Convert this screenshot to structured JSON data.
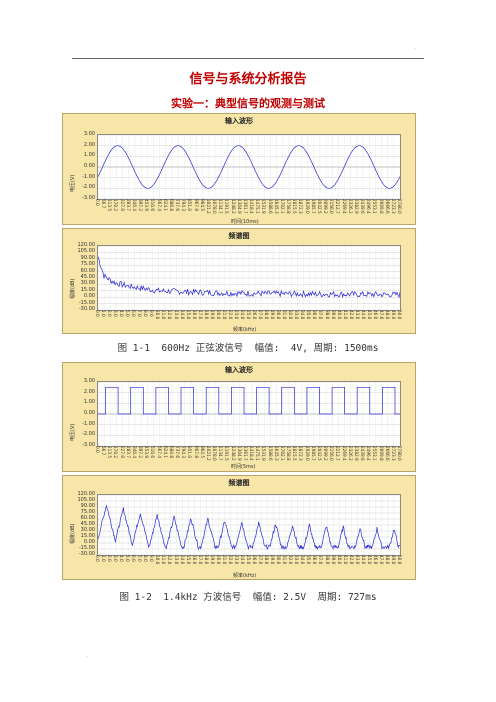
{
  "header_mark": ".",
  "footer_mark": ".",
  "report_title": "信号与系统分析报告",
  "experiment_title": "实验一：典型信号的观测与测试",
  "figures": [
    {
      "panels": [
        {
          "title": "输入波形",
          "ylabel": "电压(V)",
          "xlabel": "时间(10ms)",
          "yticks": [
            "3.00",
            "2.00",
            "1.00",
            "0.00",
            "-1.00",
            "-2.00",
            "-3.00"
          ],
          "xticks": [
            "0.0",
            "56.7",
            "113.5",
            "170.2",
            "227.0",
            "283.7",
            "340.4",
            "397.2",
            "453.9",
            "510.6",
            "567.4",
            "624.1",
            "680.8",
            "737.6",
            "794.3",
            "851.0",
            "907.8",
            "964.5",
            "1021.2",
            "1078.0",
            "1134.7",
            "1191.5",
            "1248.2",
            "1304.9",
            "1361.7",
            "1418.4",
            "1475.1",
            "1531.9",
            "1588.6",
            "1645.3",
            "1702.1",
            "1758.8",
            "1815.5",
            "1872.3",
            "1929.0",
            "1985.7",
            "2042.5",
            "2099.2",
            "2156.0",
            "2212.7",
            "2269.4",
            "2326.2",
            "2382.9",
            "2439.6",
            "2496.4",
            "2553.1",
            "2609.8",
            "2666.6",
            "2723.3",
            "2780.0"
          ]
        },
        {
          "title": "频谱图",
          "ylabel": "幅度(dB)",
          "xlabel": "频率(kHz)",
          "yticks": [
            "120.00",
            "105.00",
            "90.00",
            "75.00",
            "60.00",
            "45.00",
            "30.00",
            "15.00",
            "0.00",
            "-15.00",
            "-30.00"
          ],
          "xticks": [
            "0.0",
            "1.0",
            "2.0",
            "3.0",
            "4.0",
            "5.0",
            "6.0",
            "7.0",
            "8.0",
            "9.0",
            "10.0",
            "11.0",
            "12.0",
            "13.0",
            "14.0",
            "15.0",
            "16.0",
            "17.0",
            "18.0",
            "19.0",
            "20.0",
            "21.0",
            "22.0",
            "23.0",
            "24.0",
            "25.0",
            "26.0",
            "27.0",
            "28.0",
            "29.0",
            "30.0",
            "31.0",
            "32.0",
            "33.0",
            "34.0",
            "35.0",
            "36.0",
            "37.0",
            "38.0",
            "39.0",
            "40.0",
            "41.0",
            "42.0",
            "43.0",
            "44.0",
            "45.0",
            "46.0",
            "47.0",
            "48.0",
            "49.0",
            "50.0"
          ]
        }
      ],
      "caption": "图 1-1  600Hz 正弦波信号  幅值:  4V, 周期: 1500ms"
    },
    {
      "panels": [
        {
          "title": "输入波形",
          "ylabel": "电压(V)",
          "xlabel": "时间(5ms)",
          "yticks": [
            "3.00",
            "2.00",
            "1.00",
            "0.00",
            "-1.00",
            "-2.00",
            "-3.00"
          ],
          "xticks": [
            "0.0",
            "56.7",
            "113.5",
            "170.2",
            "227.0",
            "283.7",
            "340.4",
            "397.2",
            "453.9",
            "510.6",
            "567.4",
            "624.1",
            "680.8",
            "737.6",
            "794.3",
            "851.0",
            "907.8",
            "964.5",
            "1021.2",
            "1078.0",
            "1134.7",
            "1191.5",
            "1248.2",
            "1304.9",
            "1361.7",
            "1418.4",
            "1475.1",
            "1531.9",
            "1588.6",
            "1645.3",
            "1702.1",
            "1758.8",
            "1815.5",
            "1872.3",
            "1929.0",
            "1985.7",
            "2042.5",
            "2099.2",
            "2156.0",
            "2212.7",
            "2269.4",
            "2326.2",
            "2382.9",
            "2439.6",
            "2496.4",
            "2553.1",
            "2609.8",
            "2666.6",
            "2723.3",
            "2780.0"
          ]
        },
        {
          "title": "频谱图",
          "ylabel": "幅度(dB)",
          "xlabel": "频率(kHz)",
          "yticks": [
            "120.00",
            "105.00",
            "90.00",
            "75.00",
            "60.00",
            "45.00",
            "30.00",
            "15.00",
            "0.00",
            "-15.00",
            "-30.00"
          ],
          "xticks": [
            "0.0",
            "1.0",
            "2.0",
            "3.0",
            "4.0",
            "5.0",
            "6.0",
            "7.0",
            "8.0",
            "9.0",
            "10.0",
            "11.0",
            "12.0",
            "13.0",
            "14.0",
            "15.0",
            "16.0",
            "17.0",
            "18.0",
            "19.0",
            "20.0",
            "21.0",
            "22.0",
            "23.0",
            "24.0",
            "25.0",
            "26.0",
            "27.0",
            "28.0",
            "29.0",
            "30.0",
            "31.0",
            "32.0",
            "33.0",
            "34.0",
            "35.0",
            "36.0",
            "37.0",
            "38.0",
            "39.0",
            "40.0",
            "41.0",
            "42.0",
            "43.0",
            "44.0",
            "45.0",
            "46.0",
            "47.0",
            "48.0",
            "49.0",
            "50.0"
          ]
        }
      ],
      "caption": "图 1-2  1.4kHz 方波信号  幅值: 2.5V  周期: 727ms"
    }
  ],
  "colors": {
    "panel_bg": "#f7e6a8",
    "trace": "#2a2ad8",
    "title_red": "#c00000"
  },
  "chart_data": [
    {
      "type": "line",
      "title": "输入波形",
      "xlabel": "时间(10ms)",
      "ylabel": "电压(V)",
      "ylim": [
        -3,
        3
      ],
      "waveform": "sine",
      "amplitude": 2.0,
      "cycles": 5,
      "grid": true
    },
    {
      "type": "line",
      "title": "频谱图",
      "xlabel": "频率(kHz)",
      "ylabel": "幅度(dB)",
      "ylim": [
        -30,
        120
      ],
      "x": [
        0,
        1,
        2,
        3,
        5,
        10,
        20,
        30,
        40,
        50
      ],
      "y": [
        95,
        50,
        40,
        33,
        26,
        15,
        10,
        8,
        7,
        6
      ],
      "grid": true
    },
    {
      "type": "line",
      "title": "输入波形",
      "xlabel": "时间(5ms)",
      "ylabel": "电压(V)",
      "ylim": [
        -3,
        3
      ],
      "waveform": "square",
      "high": 2.5,
      "low": 0.0,
      "cycles": 12,
      "grid": true
    },
    {
      "type": "line",
      "title": "频谱图",
      "xlabel": "频率(kHz)",
      "ylabel": "幅度(dB)",
      "ylim": [
        -30,
        120
      ],
      "x": [
        1.4,
        4.2,
        7.0,
        9.8,
        12.6,
        15.4,
        18.2,
        21.0,
        23.8,
        26.6,
        29.4,
        32.2,
        35.0,
        37.8,
        40.6,
        43.4,
        46.2,
        49.0
      ],
      "y": [
        95,
        85,
        75,
        70,
        65,
        62,
        60,
        55,
        52,
        50,
        48,
        45,
        44,
        42,
        40,
        38,
        36,
        35
      ],
      "grid": true
    }
  ]
}
